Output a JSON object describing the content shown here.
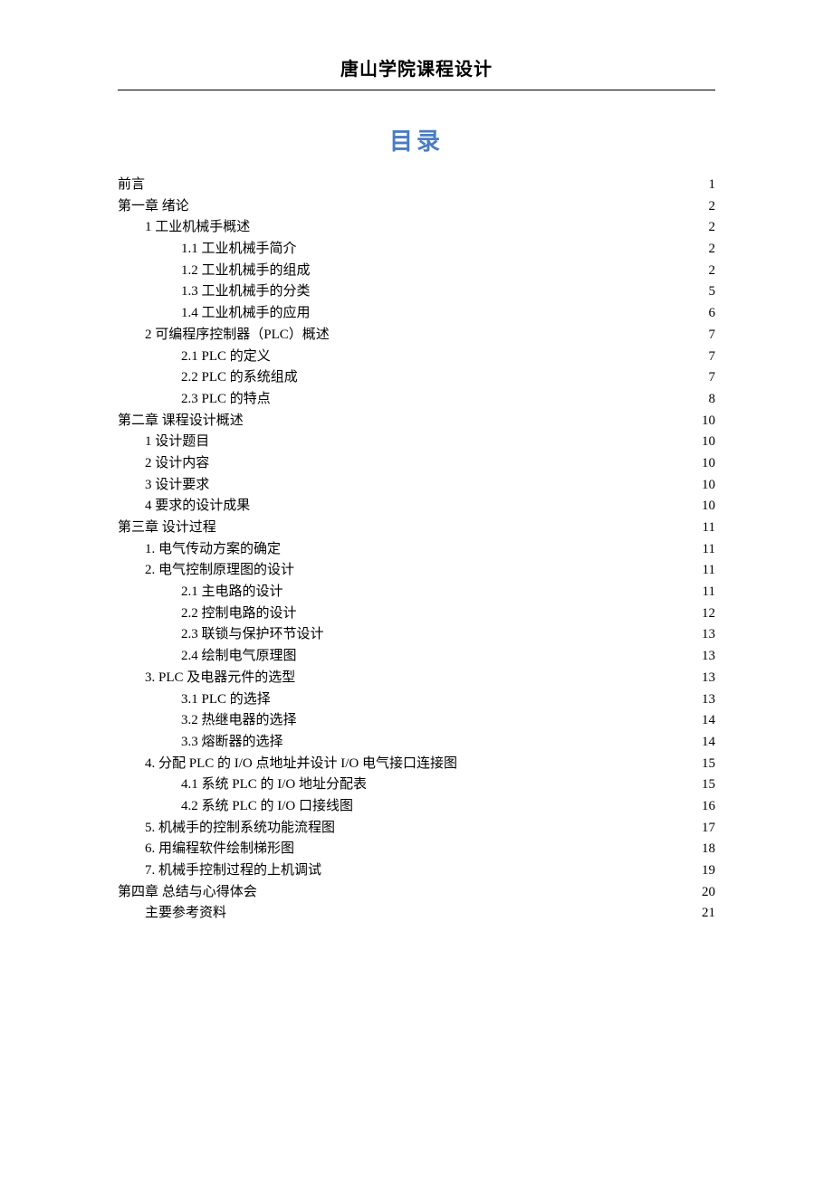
{
  "header": {
    "title": "唐山学院课程设计"
  },
  "toc": {
    "title": "目录",
    "title_color": "#4a7cc3",
    "text_color": "#000000",
    "entries": [
      {
        "label": "前言",
        "page": "1",
        "level": 0
      },
      {
        "label": "第一章  绪论",
        "page": "2",
        "level": 0
      },
      {
        "label": "1 工业机械手概述",
        "page": "2",
        "level": 1
      },
      {
        "label": "1.1 工业机械手简介",
        "page": "2",
        "level": 2
      },
      {
        "label": "1.2 工业机械手的组成",
        "page": "2",
        "level": 2
      },
      {
        "label": "1.3 工业机械手的分类",
        "page": "5",
        "level": 2
      },
      {
        "label": "1.4 工业机械手的应用",
        "page": "6",
        "level": 2
      },
      {
        "label": "2  可编程序控制器（PLC）概述",
        "page": "7",
        "level": 1
      },
      {
        "label": "2.1 PLC 的定义",
        "page": "7",
        "level": 2
      },
      {
        "label": "2.2 PLC 的系统组成",
        "page": "7",
        "level": 2
      },
      {
        "label": "2.3 PLC 的特点",
        "page": "8",
        "level": 2
      },
      {
        "label": "第二章  课程设计概述",
        "page": "10",
        "level": 0
      },
      {
        "label": "1 设计题目",
        "page": "10",
        "level": 1
      },
      {
        "label": "2 设计内容",
        "page": "10",
        "level": 1
      },
      {
        "label": "3 设计要求",
        "page": "10",
        "level": 1
      },
      {
        "label": "4 要求的设计成果",
        "page": "10",
        "level": 1
      },
      {
        "label": "第三章  设计过程",
        "page": "11",
        "level": 0
      },
      {
        "label": "1. 电气传动方案的确定",
        "page": "11",
        "level": 1
      },
      {
        "label": "2. 电气控制原理图的设计",
        "page": "11",
        "level": 1
      },
      {
        "label": "2.1 主电路的设计",
        "page": "11",
        "level": 2
      },
      {
        "label": "2.2 控制电路的设计",
        "page": "12",
        "level": 2
      },
      {
        "label": "2.3 联锁与保护环节设计",
        "page": "13",
        "level": 2
      },
      {
        "label": "2.4 绘制电气原理图",
        "page": "13",
        "level": 2
      },
      {
        "label": "3.  PLC 及电器元件的选型",
        "page": "13",
        "level": 1
      },
      {
        "label": "3.1 PLC 的选择",
        "page": "13",
        "level": 2
      },
      {
        "label": "3.2 热继电器的选择",
        "page": "14",
        "level": 2
      },
      {
        "label": "3.3 熔断器的选择",
        "page": "14",
        "level": 2
      },
      {
        "label": "4. 分配 PLC 的 I/O 点地址并设计 I/O 电气接口连接图",
        "page": "15",
        "level": 1
      },
      {
        "label": "4.1 系统 PLC 的 I/O 地址分配表",
        "page": "15",
        "level": 2
      },
      {
        "label": "4.2 系统 PLC 的 I/O 口接线图",
        "page": "16",
        "level": 2
      },
      {
        "label": "5. 机械手的控制系统功能流程图",
        "page": "17",
        "level": 1
      },
      {
        "label": "6. 用编程软件绘制梯形图",
        "page": "18",
        "level": 1
      },
      {
        "label": "7. 机械手控制过程的上机调试",
        "page": "19",
        "level": 1
      },
      {
        "label": "第四章  总结与心得体会",
        "page": "20",
        "level": 0
      },
      {
        "label": "主要参考资料",
        "page": "21",
        "level": 1
      }
    ]
  }
}
